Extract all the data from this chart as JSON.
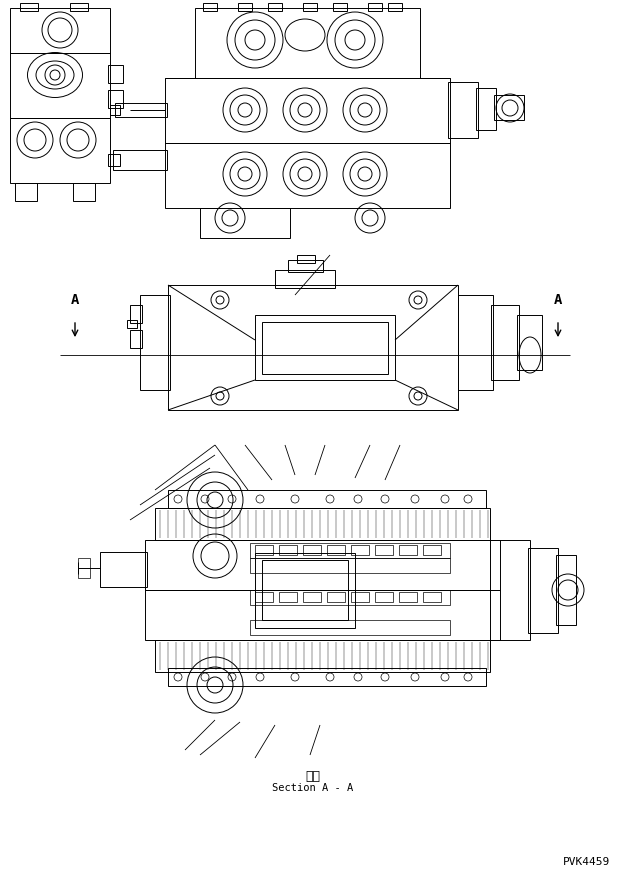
{
  "bg_color": "#ffffff",
  "line_color": "#000000",
  "title_japanese": "断面",
  "title_english": "Section A - A",
  "label_A": "A",
  "part_number": "PVK4459",
  "fig_width": 6.26,
  "fig_height": 8.8,
  "dpi": 100
}
